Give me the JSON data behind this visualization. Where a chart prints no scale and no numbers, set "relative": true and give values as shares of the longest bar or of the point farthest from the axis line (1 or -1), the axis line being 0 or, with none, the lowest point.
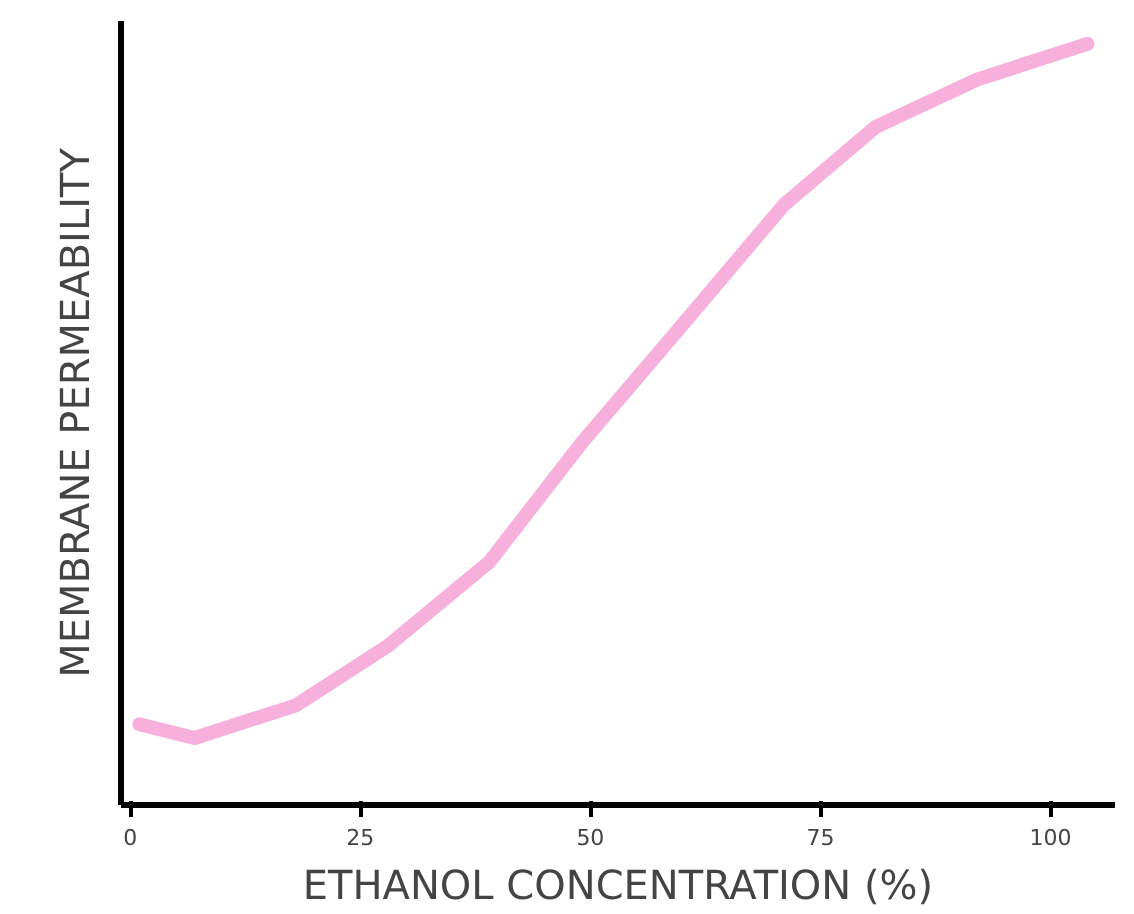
{
  "chart_data": {
    "type": "line",
    "xlabel": "ETHANOL CONCENTRATION (%)",
    "ylabel": "MEMBRANE PERMEABILITY",
    "relative": true,
    "xlim": [
      -1,
      107
    ],
    "xticks": [
      0,
      25,
      50,
      75,
      100
    ],
    "grid": false,
    "marker": "none",
    "line_style": "solid",
    "series": [
      {
        "color": "#f7b0dc",
        "x": [
          1,
          7,
          18,
          28,
          39,
          49,
          60,
          71,
          81,
          92,
          104
        ],
        "values": [
          0.106,
          0.088,
          0.131,
          0.209,
          0.319,
          0.475,
          0.631,
          0.788,
          0.891,
          0.953,
          1.0
        ]
      }
    ]
  }
}
